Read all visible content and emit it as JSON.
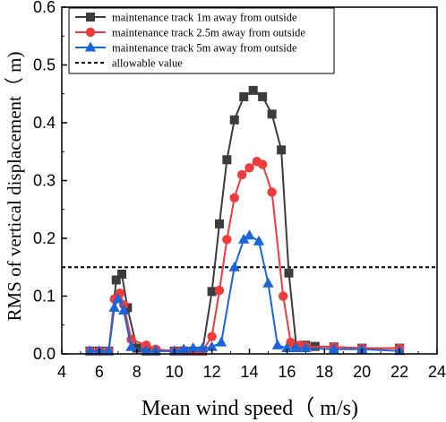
{
  "chart_data": {
    "type": "line",
    "xlabel": "Mean wind speed（ m/s)",
    "ylabel": "RMS of vertical displacement（ m)",
    "xlim": [
      4,
      24
    ],
    "ylim": [
      0,
      0.6
    ],
    "xticks": [
      "4",
      "6",
      "8",
      "10",
      "12",
      "14",
      "16",
      "18",
      "20",
      "22",
      "24"
    ],
    "yticks": [
      "0.0",
      "0.1",
      "0.2",
      "0.3",
      "0.4",
      "0.5",
      "0.6"
    ],
    "grid": false,
    "legend_position": "top-left",
    "series": [
      {
        "name": "maintenance track 1m away from outside",
        "color": "#3c3c3c",
        "marker": "square",
        "x": [
          5.5,
          6.0,
          6.5,
          6.9,
          7.2,
          7.5,
          8.0,
          8.5,
          9.0,
          10.0,
          10.5,
          11.0,
          11.5,
          12.0,
          12.4,
          12.8,
          13.2,
          13.7,
          14.2,
          14.7,
          15.2,
          15.7,
          16.1,
          16.5,
          17.0,
          17.5,
          18.5,
          20.0,
          22.0
        ],
        "y": [
          0.005,
          0.005,
          0.005,
          0.128,
          0.138,
          0.08,
          0.01,
          0.005,
          0.005,
          0.005,
          0.005,
          0.005,
          0.005,
          0.108,
          0.225,
          0.336,
          0.405,
          0.445,
          0.456,
          0.445,
          0.415,
          0.353,
          0.14,
          0.013,
          0.015,
          0.013,
          0.012,
          0.01,
          0.01
        ]
      },
      {
        "name": "maintenance track 2.5m away from outside",
        "color": "#ee3b3b",
        "marker": "circle",
        "x": [
          5.5,
          6.0,
          6.5,
          6.8,
          7.1,
          7.3,
          7.7,
          8.5,
          9.0,
          10.0,
          10.5,
          11.0,
          11.5,
          12.0,
          12.4,
          12.8,
          13.2,
          13.6,
          14.0,
          14.4,
          14.7,
          15.2,
          15.8,
          16.2,
          16.7,
          17.0,
          18.5,
          20.0,
          22.0
        ],
        "y": [
          0.005,
          0.005,
          0.005,
          0.095,
          0.105,
          0.085,
          0.025,
          0.015,
          0.008,
          0.005,
          0.005,
          0.005,
          0.005,
          0.03,
          0.11,
          0.198,
          0.27,
          0.31,
          0.322,
          0.333,
          0.328,
          0.28,
          0.1,
          0.02,
          0.015,
          0.013,
          0.012,
          0.01,
          0.01
        ]
      },
      {
        "name": "maintenance track 5m away from outside",
        "color": "#1a66d9",
        "marker": "triangle",
        "x": [
          5.5,
          6.0,
          6.5,
          6.8,
          7.0,
          7.3,
          7.7,
          8.5,
          9.0,
          10.0,
          10.5,
          11.0,
          11.5,
          12.0,
          12.5,
          13.2,
          13.7,
          14.0,
          14.5,
          15.0,
          15.5,
          16.0,
          16.5,
          17.0,
          18.5,
          20.0,
          22.0
        ],
        "y": [
          0.005,
          0.005,
          0.005,
          0.08,
          0.095,
          0.075,
          0.012,
          0.005,
          0.005,
          0.005,
          0.008,
          0.01,
          0.01,
          0.012,
          0.02,
          0.15,
          0.198,
          0.205,
          0.195,
          0.122,
          0.015,
          0.01,
          0.01,
          0.01,
          0.008,
          0.008,
          0.005
        ]
      }
    ],
    "reference_line": {
      "name": "allowable value",
      "y": 0.15,
      "color": "#000000",
      "style": "dashed"
    }
  }
}
